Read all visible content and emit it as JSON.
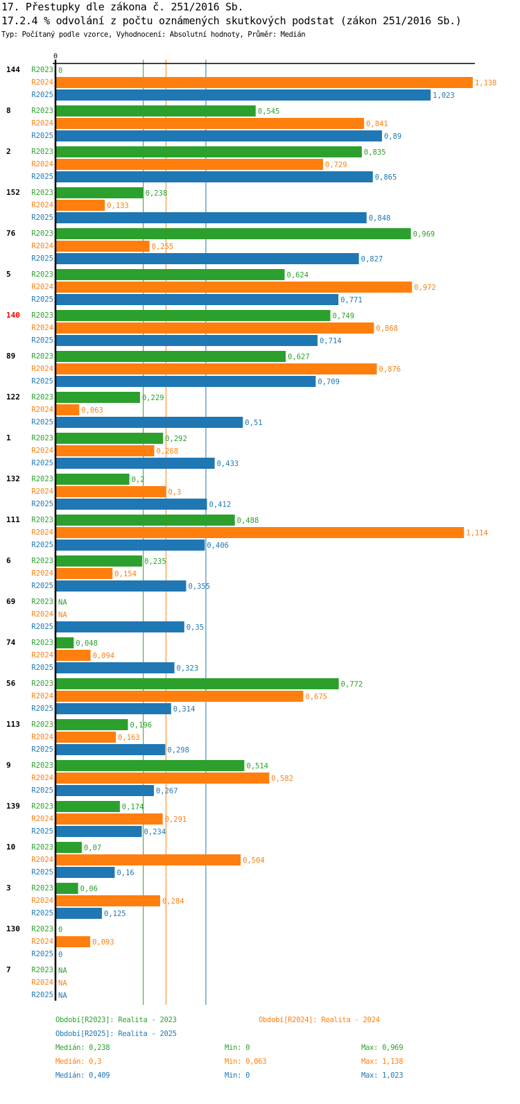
{
  "header": {
    "title": "17. Přestupky dle zákona č. 251/2016 Sb.",
    "subtitle": "17.2.4 % odvolání z počtu oznámených skutkových podstat (zákon 251/2016 Sb.)",
    "meta": "Typ: Počítaný podle vzorce, Vyhodnocení: Absolutní hodnoty, Průměr: Medián"
  },
  "colors": {
    "R2023": "#2ca02c",
    "R2024": "#ff7f0e",
    "R2025": "#1f77b4",
    "highlight": "#ff0000",
    "axis": "#000000"
  },
  "chart_data": {
    "type": "bar",
    "orientation": "horizontal",
    "title": "17.2.4 % odvolání z počtu oznámených skutkových podstat (zákon 251/2016 Sb.)",
    "axis_zero_label": "0",
    "xlim": [
      0,
      1.138
    ],
    "series_names": [
      "R2023",
      "R2024",
      "R2025"
    ],
    "categories": [
      "144",
      "8",
      "2",
      "152",
      "76",
      "5",
      "140",
      "89",
      "122",
      "1",
      "132",
      "111",
      "6",
      "69",
      "74",
      "56",
      "113",
      "9",
      "139",
      "10",
      "3",
      "130",
      "7"
    ],
    "highlighted_category": "140",
    "series": [
      {
        "name": "R2023",
        "values": [
          0,
          0.545,
          0.835,
          0.238,
          0.969,
          0.624,
          0.749,
          0.627,
          0.229,
          0.292,
          0.2,
          0.488,
          0.235,
          null,
          0.048,
          0.772,
          0.196,
          0.514,
          0.174,
          0.07,
          0.06,
          0,
          null
        ]
      },
      {
        "name": "R2024",
        "values": [
          1.138,
          0.841,
          0.729,
          0.133,
          0.255,
          0.972,
          0.868,
          0.876,
          0.063,
          0.268,
          0.3,
          1.114,
          0.154,
          null,
          0.094,
          0.675,
          0.163,
          0.582,
          0.291,
          0.504,
          0.284,
          0.093,
          null
        ]
      },
      {
        "name": "R2025",
        "values": [
          1.023,
          0.89,
          0.865,
          0.848,
          0.827,
          0.771,
          0.714,
          0.709,
          0.51,
          0.433,
          0.412,
          0.406,
          0.355,
          0.35,
          0.323,
          0.314,
          0.298,
          0.267,
          0.234,
          0.16,
          0.125,
          0,
          null
        ]
      }
    ],
    "value_labels": {
      "R2023": [
        "0",
        "0,545",
        "0,835",
        "0,238",
        "0,969",
        "0,624",
        "0,749",
        "0,627",
        "0,229",
        "0,292",
        "0,2",
        "0,488",
        "0,235",
        "NA",
        "0,048",
        "0,772",
        "0,196",
        "0,514",
        "0,174",
        "0,07",
        "0,06",
        "0",
        "NA"
      ],
      "R2024": [
        "1,138",
        "0,841",
        "0,729",
        "0,133",
        "0,255",
        "0,972",
        "0,868",
        "0,876",
        "0,063",
        "0,268",
        "0,3",
        "1,114",
        "0,154",
        "NA",
        "0,094",
        "0,675",
        "0,163",
        "0,582",
        "0,291",
        "0,504",
        "0,284",
        "0,093",
        "NA"
      ],
      "R2025": [
        "1,023",
        "0,89",
        "0,865",
        "0,848",
        "0,827",
        "0,771",
        "0,714",
        "0,709",
        "0,51",
        "0,433",
        "0,412",
        "0,406",
        "0,355",
        "0,35",
        "0,323",
        "0,314",
        "0,298",
        "0,267",
        "0,234",
        "0,16",
        "0,125",
        "0",
        "NA"
      ]
    },
    "medians": {
      "R2023": 0.238,
      "R2024": 0.3,
      "R2025": 0.409
    },
    "legend": {
      "periods": [
        {
          "series": "R2023",
          "text": "Období[R2023]: Realita - 2023"
        },
        {
          "series": "R2024",
          "text": "Období[R2024]: Realita - 2024"
        },
        {
          "series": "R2025",
          "text": "Období[R2025]: Realita - 2025"
        }
      ],
      "stats": [
        {
          "series": "R2023",
          "median": "Medián: 0,238",
          "min": "Min: 0",
          "max": "Max: 0,969"
        },
        {
          "series": "R2024",
          "median": "Medián: 0,3",
          "min": "Min: 0,063",
          "max": "Max: 1,138"
        },
        {
          "series": "R2025",
          "median": "Medián: 0,409",
          "min": "Min: 0",
          "max": "Max: 1,023"
        }
      ]
    }
  }
}
